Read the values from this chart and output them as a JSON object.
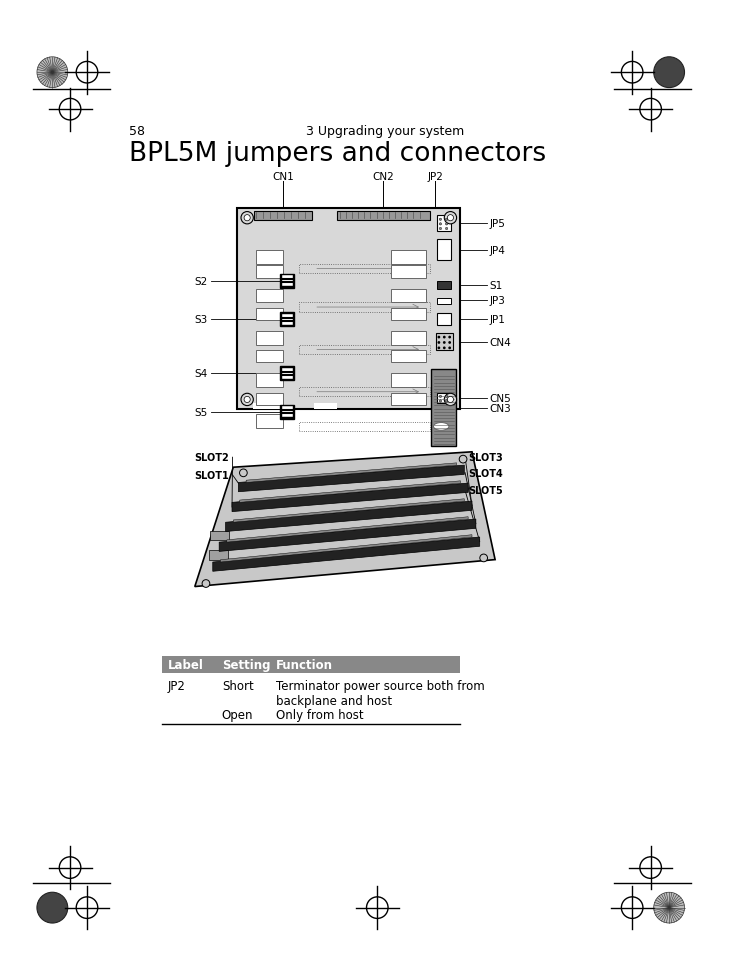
{
  "page_number": "58",
  "chapter_header": "3 Upgrading your system",
  "title": "BPL5M jumpers and connectors",
  "background_color": "#ffffff",
  "table_header_bg": "#888888",
  "table_col1_header": "Label",
  "table_col2_header": "Setting",
  "table_col3_header": "Function",
  "right_labels": [
    [
      "JP5",
      0
    ],
    [
      "JP4",
      1
    ],
    [
      "S1",
      2
    ],
    [
      "JP3",
      3
    ],
    [
      "JP1",
      4
    ],
    [
      "CN4",
      5
    ],
    [
      "CN3",
      6
    ],
    [
      "CN5",
      7
    ]
  ],
  "left_labels": [
    [
      "S2",
      0
    ],
    [
      "S3",
      1
    ],
    [
      "S4",
      2
    ],
    [
      "S5",
      3
    ]
  ],
  "top_labels": [
    "CN1",
    "CN2",
    "JP2"
  ],
  "slot_labels_left": [
    "SLOT2",
    "SLOT1"
  ],
  "slot_labels_right": [
    "SLOT3",
    "SLOT4",
    "SLOT5"
  ]
}
